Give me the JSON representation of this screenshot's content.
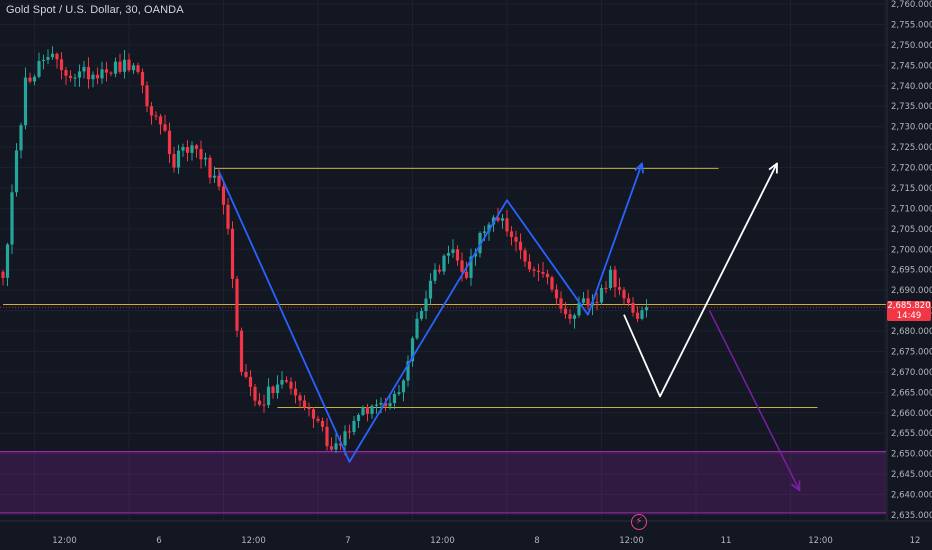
{
  "header": {
    "symbol_title": "Gold Spot / U.S. Dollar, 30, OANDA"
  },
  "badge": {
    "price": "2,685.820",
    "countdown": "14:49"
  },
  "icons": {
    "flash": "lightning-bolt-icon"
  },
  "colors": {
    "background": "#131722",
    "up_candle": "#26a69a",
    "down_candle": "#f23645",
    "level_line": "#c9b037",
    "demand_zone": "#9c27b0",
    "blue_path": "#2962ff",
    "white_path": "#ffffff",
    "purple_arrow": "#7b1fa2"
  },
  "chart_data": {
    "type": "candlestick",
    "symbol": "Gold Spot / U.S. Dollar",
    "timeframe": "30",
    "source": "OANDA",
    "last_price": 2685.82,
    "y_axis": {
      "min": 2635,
      "max": 2760,
      "step": 5,
      "ticks": [
        "2,760.000",
        "2,755.000",
        "2,750.000",
        "2,745.000",
        "2,740.000",
        "2,735.000",
        "2,730.000",
        "2,725.000",
        "2,720.000",
        "2,715.000",
        "2,710.000",
        "2,705.000",
        "2,700.000",
        "2,695.000",
        "2,690.000",
        "2,685.000",
        "2,680.000",
        "2,675.000",
        "2,670.000",
        "2,665.000",
        "2,660.000",
        "2,655.000",
        "2,650.000",
        "2,645.000",
        "2,640.000",
        "2,635.000"
      ]
    },
    "x_axis": {
      "ticks": [
        {
          "label": "12:00",
          "bar": 7
        },
        {
          "label": "6",
          "bar": 28
        },
        {
          "label": "12:00",
          "bar": 49
        },
        {
          "label": "7",
          "bar": 70
        },
        {
          "label": "12:00",
          "bar": 91
        },
        {
          "label": "8",
          "bar": 112
        },
        {
          "label": "12:00",
          "bar": 133
        },
        {
          "label": "11",
          "bar": 154
        },
        {
          "label": "12:00",
          "bar": 175
        },
        {
          "label": "12",
          "bar": 196
        }
      ]
    },
    "key_closes": [
      {
        "bar": 0,
        "price": 2693
      },
      {
        "bar": 5,
        "price": 2742
      },
      {
        "bar": 10,
        "price": 2747
      },
      {
        "bar": 16,
        "price": 2742
      },
      {
        "bar": 22,
        "price": 2744
      },
      {
        "bar": 29,
        "price": 2745
      },
      {
        "bar": 32,
        "price": 2735
      },
      {
        "bar": 36,
        "price": 2729
      },
      {
        "bar": 38,
        "price": 2720
      },
      {
        "bar": 40,
        "price": 2725
      },
      {
        "bar": 44,
        "price": 2722
      },
      {
        "bar": 47,
        "price": 2718
      },
      {
        "bar": 50,
        "price": 2705
      },
      {
        "bar": 53,
        "price": 2670
      },
      {
        "bar": 57,
        "price": 2662
      },
      {
        "bar": 62,
        "price": 2668
      },
      {
        "bar": 66,
        "price": 2663
      },
      {
        "bar": 70,
        "price": 2658
      },
      {
        "bar": 73,
        "price": 2651
      },
      {
        "bar": 78,
        "price": 2658
      },
      {
        "bar": 83,
        "price": 2662
      },
      {
        "bar": 88,
        "price": 2665
      },
      {
        "bar": 92,
        "price": 2683
      },
      {
        "bar": 96,
        "price": 2695
      },
      {
        "bar": 100,
        "price": 2700
      },
      {
        "bar": 103,
        "price": 2693
      },
      {
        "bar": 106,
        "price": 2704
      },
      {
        "bar": 110,
        "price": 2707
      },
      {
        "bar": 113,
        "price": 2703
      },
      {
        "bar": 116,
        "price": 2697
      },
      {
        "bar": 120,
        "price": 2694
      },
      {
        "bar": 123,
        "price": 2688
      },
      {
        "bar": 126,
        "price": 2683
      },
      {
        "bar": 129,
        "price": 2688
      },
      {
        "bar": 132,
        "price": 2687
      },
      {
        "bar": 135,
        "price": 2695
      },
      {
        "bar": 138,
        "price": 2688
      },
      {
        "bar": 141,
        "price": 2683
      },
      {
        "bar": 143,
        "price": 2685.82
      }
    ],
    "horizontal_levels": [
      {
        "name": "resistance",
        "price": 2719.8,
        "from_bar": 47,
        "to_bar": 159
      },
      {
        "name": "current",
        "price": 2686.5,
        "from_bar": 0,
        "to_bar": 201
      },
      {
        "name": "support",
        "price": 2661.3,
        "from_bar": 61,
        "to_bar": 181
      }
    ],
    "demand_zone": {
      "top": 2650.5,
      "bottom": 2635.5
    },
    "annotations": {
      "blue_zigzag": [
        {
          "bar": 48,
          "price": 2719
        },
        {
          "bar": 77,
          "price": 2648
        },
        {
          "bar": 112,
          "price": 2712
        },
        {
          "bar": 130,
          "price": 2684
        },
        {
          "bar": 142,
          "price": 2721
        }
      ],
      "white_path": [
        {
          "bar": 138,
          "price": 2684
        },
        {
          "bar": 146,
          "price": 2664
        },
        {
          "bar": 172,
          "price": 2721
        }
      ],
      "purple_arrow": [
        {
          "bar": 157,
          "price": 2685
        },
        {
          "bar": 177,
          "price": 2641
        }
      ]
    }
  }
}
